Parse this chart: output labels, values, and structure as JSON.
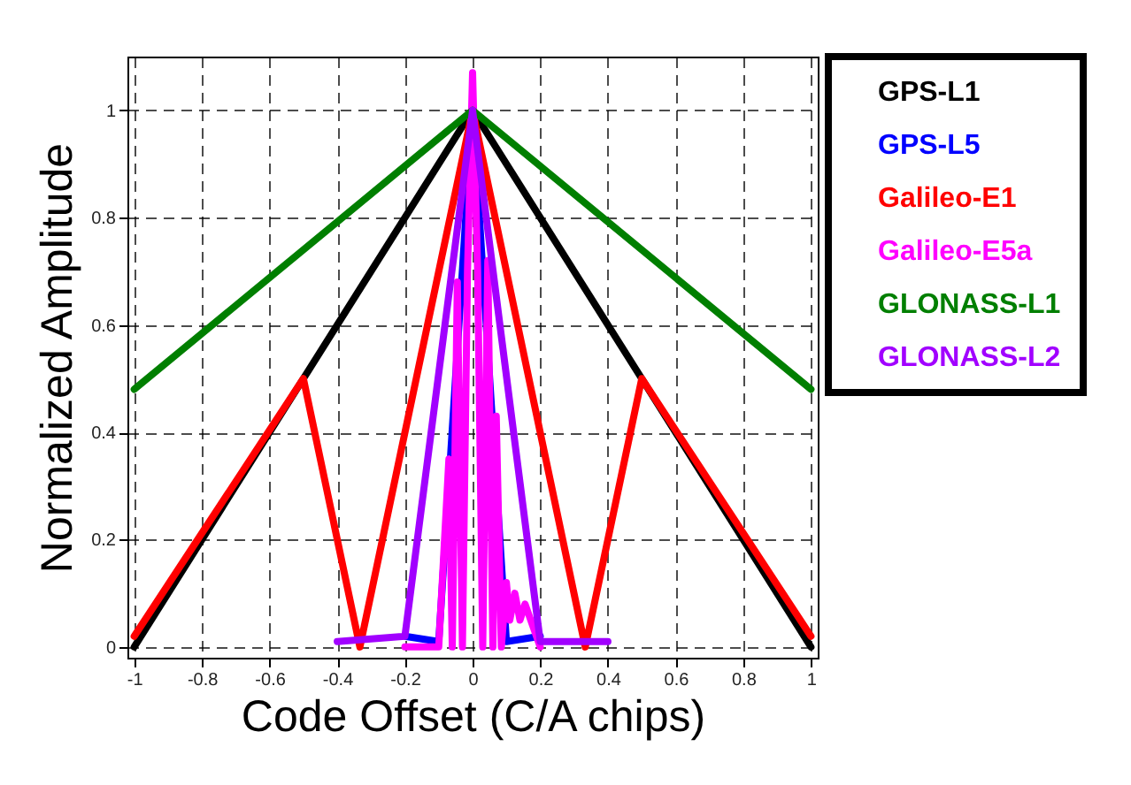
{
  "chart_data": {
    "type": "line",
    "xlabel": "Code Offset (C/A chips)",
    "ylabel": "Normalized Amplitude",
    "xlim": [
      -1.02,
      1.02
    ],
    "xticks": [
      -1,
      -0.8,
      -0.6,
      -0.4,
      -0.2,
      0,
      0.2,
      0.4,
      0.6,
      0.8,
      1
    ],
    "ylim": [
      -0.02,
      1.1
    ],
    "yticks": [
      0,
      0.2,
      0.4,
      0.6,
      0.8,
      1
    ],
    "grid": true,
    "legend": "top right",
    "line_style": "solid",
    "marker": "none",
    "series": [
      {
        "name": "GPS-L1",
        "color": "#000000",
        "x": [
          -1,
          0,
          1
        ],
        "values": [
          0,
          1,
          0
        ]
      },
      {
        "name": "GPS-L5",
        "color": "#0000ff",
        "x": [
          -0.2,
          -0.1,
          0,
          0.1,
          0.2
        ],
        "values": [
          0.02,
          0.01,
          1,
          0.01,
          0.02
        ]
      },
      {
        "name": "Galileo-E1",
        "color": "#ff0000",
        "x": [
          -1,
          -0.5,
          -0.333,
          0,
          0.333,
          0.5,
          1
        ],
        "values": [
          0.02,
          0.5,
          0,
          1,
          0,
          0.5,
          0.02
        ]
      },
      {
        "name": "Galileo-E5a",
        "color": "#ff00ff",
        "x": [
          -0.2,
          -0.1,
          -0.07,
          -0.06,
          -0.045,
          -0.03,
          -0.015,
          0,
          0.015,
          0.03,
          0.045,
          0.06,
          0.07,
          0.085,
          0.1,
          0.11,
          0.125,
          0.14,
          0.155,
          0.2
        ],
        "values": [
          0,
          0,
          0.35,
          0,
          0.68,
          0,
          0.7,
          1.07,
          0.7,
          0,
          0.72,
          0,
          0.43,
          0,
          0.12,
          0.05,
          0.1,
          0.05,
          0.08,
          0
        ]
      },
      {
        "name": "GLONASS-L1",
        "color": "#007f00",
        "x": [
          -1,
          0,
          1
        ],
        "values": [
          0.48,
          1,
          0.48
        ]
      },
      {
        "name": "GLONASS-L2",
        "color": "#a100ff",
        "x": [
          -0.4,
          -0.2,
          0,
          0.2,
          0.4
        ],
        "values": [
          0.01,
          0.02,
          1,
          0.01,
          0.01
        ]
      }
    ]
  }
}
